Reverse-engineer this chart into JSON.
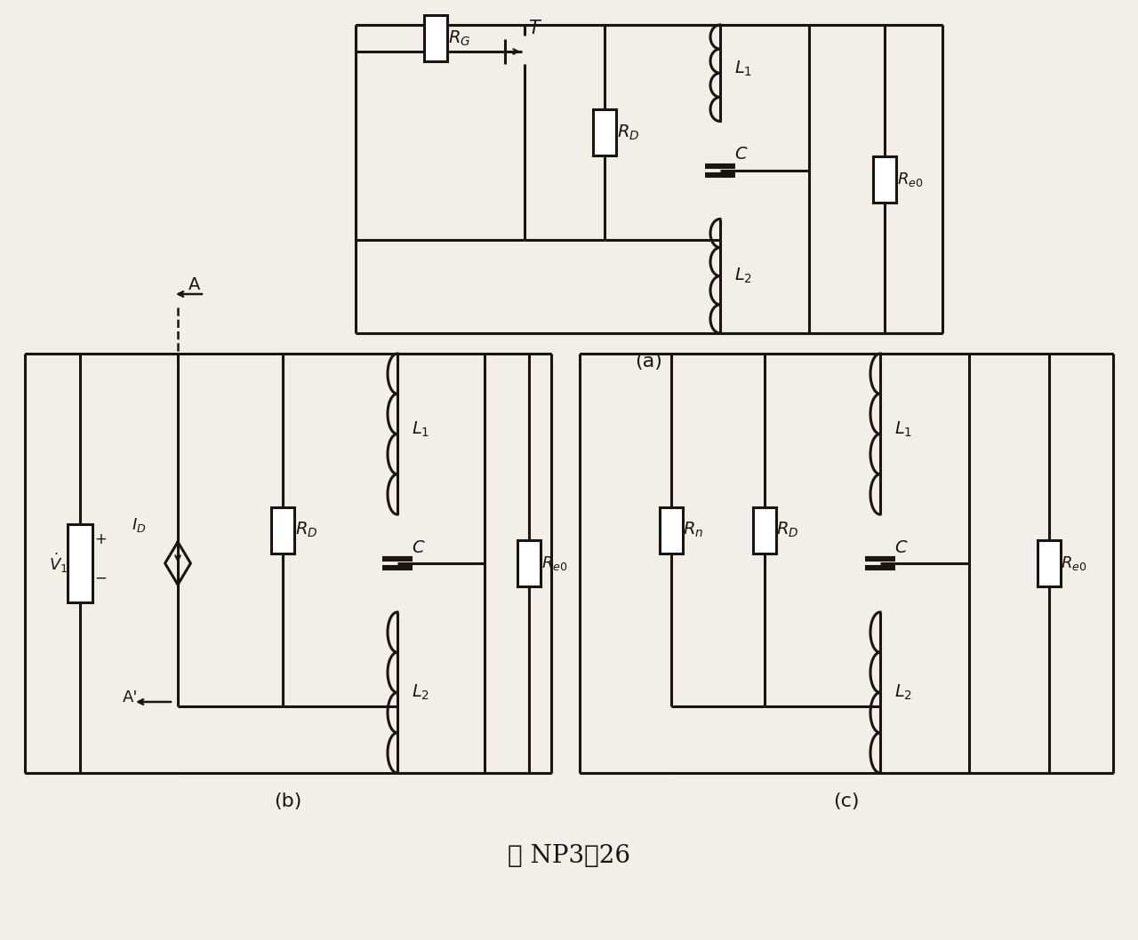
{
  "bg": "#f2efe9",
  "lc": "#1a1510",
  "lw": 2.2,
  "title": "图 NP3－26",
  "label_a": "(a)",
  "label_b": "(b)",
  "label_c": "(c)"
}
